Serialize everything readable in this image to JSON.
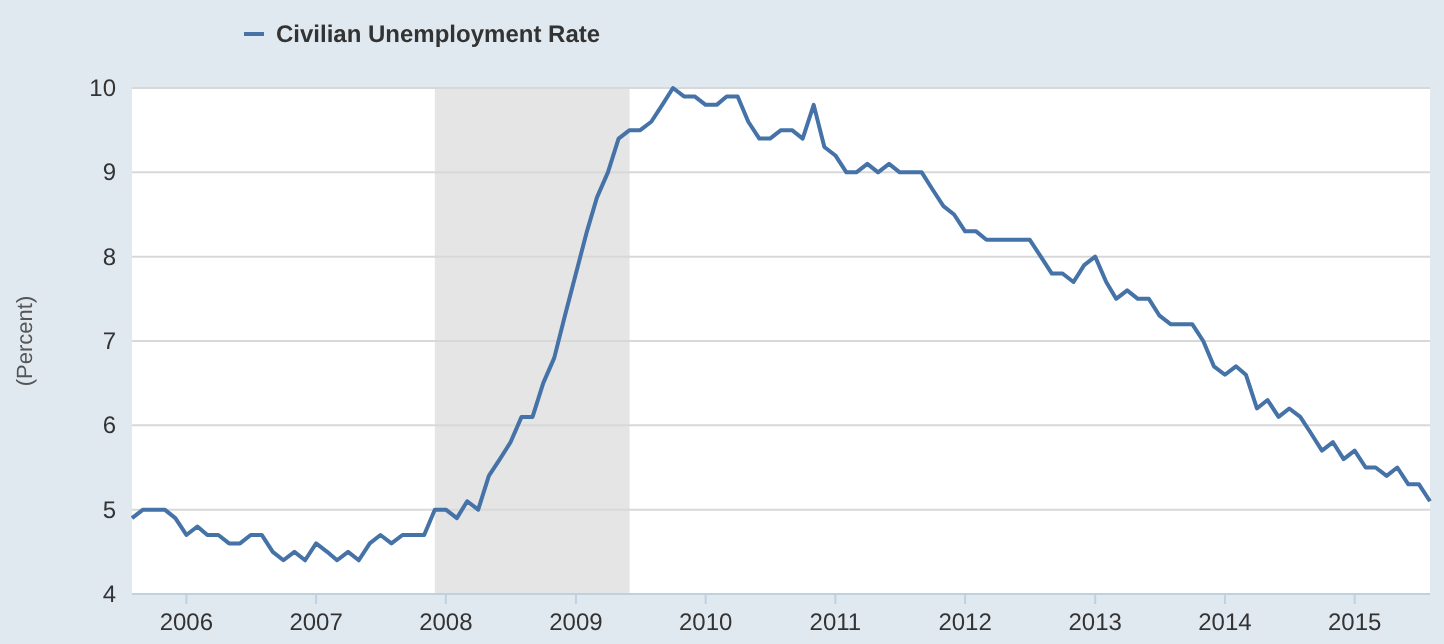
{
  "chart_data": {
    "type": "line",
    "ylabel": "(Percent)",
    "legend": "top left",
    "grid": "y",
    "marker": "none",
    "line_style": "solid",
    "x": [
      "2005-08",
      "2005-09",
      "2005-10",
      "2005-11",
      "2005-12",
      "2006-01",
      "2006-02",
      "2006-03",
      "2006-04",
      "2006-05",
      "2006-06",
      "2006-07",
      "2006-08",
      "2006-09",
      "2006-10",
      "2006-11",
      "2006-12",
      "2007-01",
      "2007-02",
      "2007-03",
      "2007-04",
      "2007-05",
      "2007-06",
      "2007-07",
      "2007-08",
      "2007-09",
      "2007-10",
      "2007-11",
      "2007-12",
      "2008-01",
      "2008-02",
      "2008-03",
      "2008-04",
      "2008-05",
      "2008-06",
      "2008-07",
      "2008-08",
      "2008-09",
      "2008-10",
      "2008-11",
      "2008-12",
      "2009-01",
      "2009-02",
      "2009-03",
      "2009-04",
      "2009-05",
      "2009-06",
      "2009-07",
      "2009-08",
      "2009-09",
      "2009-10",
      "2009-11",
      "2009-12",
      "2010-01",
      "2010-02",
      "2010-03",
      "2010-04",
      "2010-05",
      "2010-06",
      "2010-07",
      "2010-08",
      "2010-09",
      "2010-10",
      "2010-11",
      "2010-12",
      "2011-01",
      "2011-02",
      "2011-03",
      "2011-04",
      "2011-05",
      "2011-06",
      "2011-07",
      "2011-08",
      "2011-09",
      "2011-10",
      "2011-11",
      "2011-12",
      "2012-01",
      "2012-02",
      "2012-03",
      "2012-04",
      "2012-05",
      "2012-06",
      "2012-07",
      "2012-08",
      "2012-09",
      "2012-10",
      "2012-11",
      "2012-12",
      "2013-01",
      "2013-02",
      "2013-03",
      "2013-04",
      "2013-05",
      "2013-06",
      "2013-07",
      "2013-08",
      "2013-09",
      "2013-10",
      "2013-11",
      "2013-12",
      "2014-01",
      "2014-02",
      "2014-03",
      "2014-04",
      "2014-05",
      "2014-06",
      "2014-07",
      "2014-08",
      "2014-09",
      "2014-10",
      "2014-11",
      "2014-12",
      "2015-01",
      "2015-02",
      "2015-03",
      "2015-04",
      "2015-05",
      "2015-06",
      "2015-07",
      "2015-08"
    ],
    "series": [
      {
        "name": "Civilian Unemployment Rate",
        "color": "#4572a7",
        "values": [
          4.9,
          5.0,
          5.0,
          5.0,
          4.9,
          4.7,
          4.8,
          4.7,
          4.7,
          4.6,
          4.6,
          4.7,
          4.7,
          4.5,
          4.4,
          4.5,
          4.4,
          4.6,
          4.5,
          4.4,
          4.5,
          4.4,
          4.6,
          4.7,
          4.6,
          4.7,
          4.7,
          4.7,
          5.0,
          5.0,
          4.9,
          5.1,
          5.0,
          5.4,
          5.6,
          5.8,
          6.1,
          6.1,
          6.5,
          6.8,
          7.3,
          7.8,
          8.3,
          8.7,
          9.0,
          9.4,
          9.5,
          9.5,
          9.6,
          9.8,
          10.0,
          9.9,
          9.9,
          9.8,
          9.8,
          9.9,
          9.9,
          9.6,
          9.4,
          9.4,
          9.5,
          9.5,
          9.4,
          9.8,
          9.3,
          9.2,
          9.0,
          9.0,
          9.1,
          9.0,
          9.1,
          9.0,
          9.0,
          9.0,
          8.8,
          8.6,
          8.5,
          8.3,
          8.3,
          8.2,
          8.2,
          8.2,
          8.2,
          8.2,
          8.0,
          7.8,
          7.8,
          7.7,
          7.9,
          8.0,
          7.7,
          7.5,
          7.6,
          7.5,
          7.5,
          7.3,
          7.2,
          7.2,
          7.2,
          7.0,
          6.7,
          6.6,
          6.7,
          6.6,
          6.2,
          6.3,
          6.1,
          6.2,
          6.1,
          5.9,
          5.7,
          5.8,
          5.6,
          5.7,
          5.5,
          5.5,
          5.4,
          5.5,
          5.3,
          5.3,
          5.1
        ]
      }
    ],
    "xlim": [
      "2005-08",
      "2015-08"
    ],
    "xticks": [
      "2006",
      "2007",
      "2008",
      "2009",
      "2010",
      "2011",
      "2012",
      "2013",
      "2014",
      "2015"
    ],
    "ylim": [
      4,
      10
    ],
    "yticks": [
      4,
      5,
      6,
      7,
      8,
      9,
      10
    ],
    "bands": [
      {
        "axis": "x",
        "from": "2007-12",
        "to": "2009-06",
        "color": "#e5e5e5"
      }
    ]
  }
}
